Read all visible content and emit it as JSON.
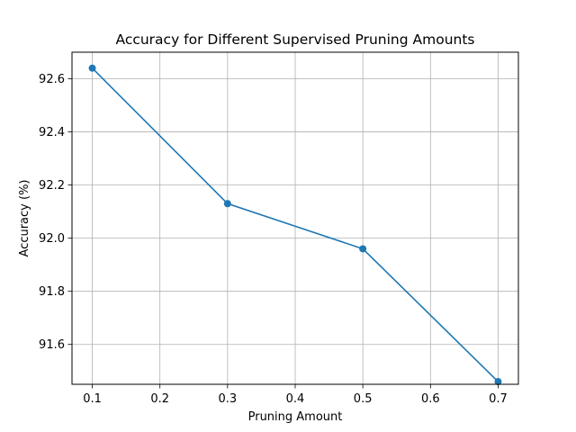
{
  "chart_data": {
    "type": "line",
    "title": "Accuracy for Different Supervised Pruning Amounts",
    "xlabel": "Pruning Amount",
    "ylabel": "Accuracy (%)",
    "xlim": [
      0.07,
      0.73
    ],
    "ylim": [
      91.45,
      92.7
    ],
    "xticks": [
      0.1,
      0.2,
      0.3,
      0.4,
      0.5,
      0.6,
      0.7
    ],
    "xtick_labels": [
      "0.1",
      "0.2",
      "0.3",
      "0.4",
      "0.5",
      "0.6",
      "0.7"
    ],
    "yticks": [
      91.6,
      91.8,
      92.0,
      92.2,
      92.4,
      92.6
    ],
    "ytick_labels": [
      "91.6",
      "91.8",
      "92.0",
      "92.2",
      "92.4",
      "92.6"
    ],
    "grid": true,
    "series": [
      {
        "x": [
          0.1,
          0.3,
          0.5,
          0.7
        ],
        "values": [
          92.64,
          92.13,
          91.96,
          91.46
        ],
        "color": "#1f77b4",
        "marker": "circle"
      }
    ]
  }
}
